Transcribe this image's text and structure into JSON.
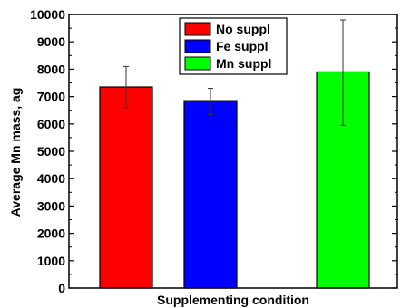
{
  "chart_data": {
    "type": "bar",
    "title": "",
    "xlabel": "Supplementing condition",
    "ylabel": "Average Mn mass, ag",
    "ylim": [
      0,
      10000
    ],
    "yticks": [
      0,
      1000,
      2000,
      3000,
      4000,
      5000,
      6000,
      7000,
      8000,
      9000,
      10000
    ],
    "grid": false,
    "legend_position": "top-center",
    "series": [
      {
        "name": "No suppl",
        "color": "#ff0000",
        "value": 7350,
        "err_low": 6600,
        "err_high": 8100
      },
      {
        "name": "Fe suppl",
        "color": "#0000ff",
        "value": 6850,
        "err_low": 6350,
        "err_high": 7300
      },
      {
        "name": "Mn suppl",
        "color": "#00ff00",
        "value": 7900,
        "err_low": 5950,
        "err_high": 9800
      }
    ]
  }
}
